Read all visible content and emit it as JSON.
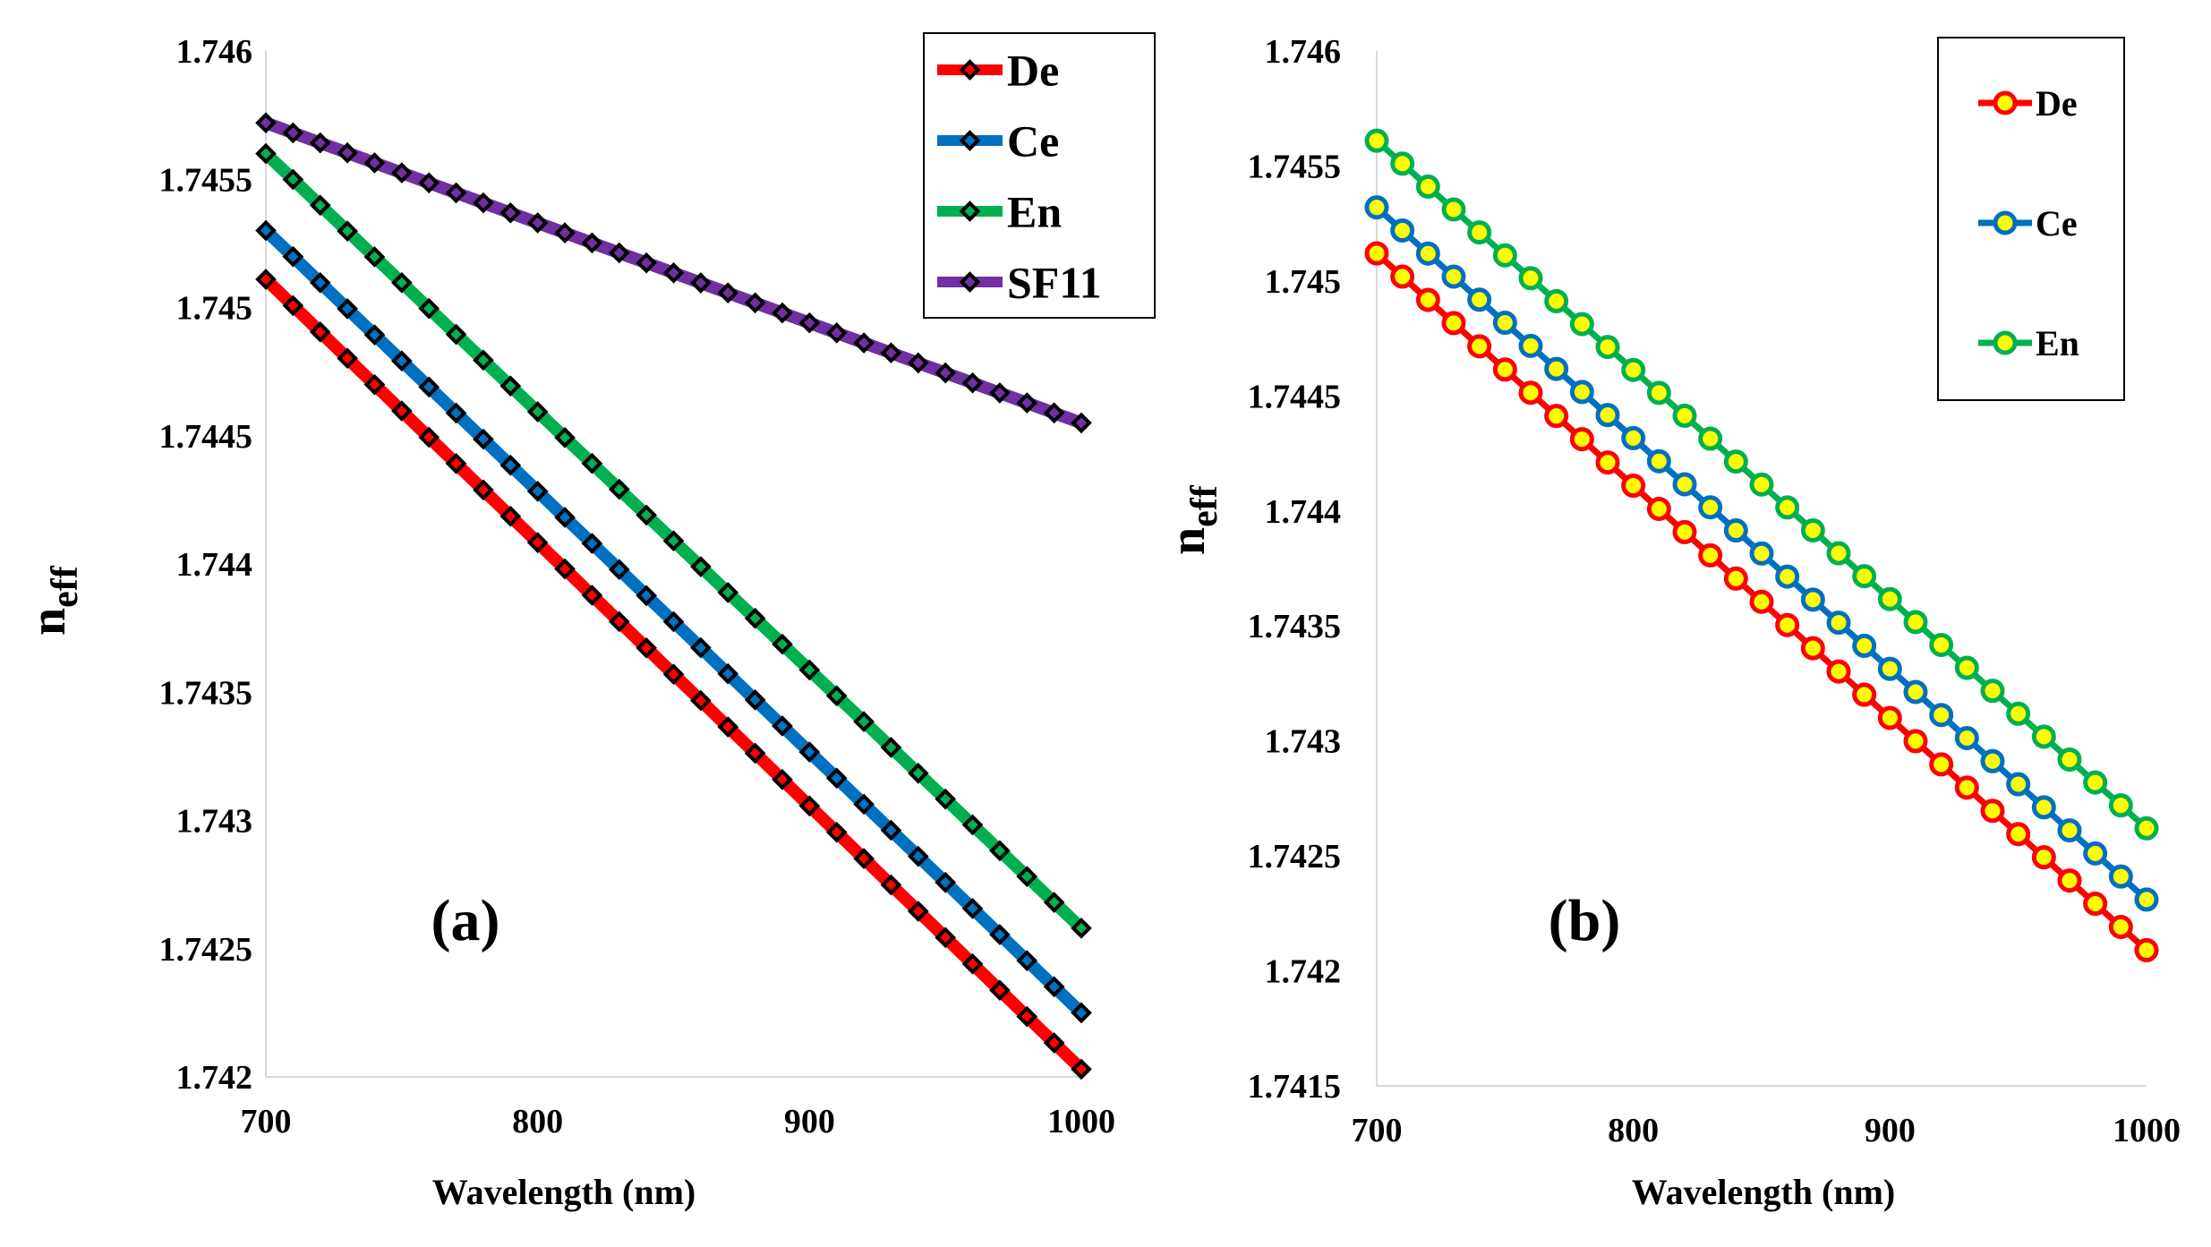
{
  "chart_data": [
    {
      "type": "line",
      "panel_label": "(a)",
      "xlabel": "Wavelength (nm)",
      "ylabel": "n",
      "ylabel_sub": "eff",
      "xlim": [
        700,
        1000
      ],
      "ylim": [
        1.742,
        1.746
      ],
      "x_ticks": [
        "700",
        "800",
        "900",
        "1000"
      ],
      "y_ticks": [
        "1.742",
        "1.7425",
        "1.743",
        "1.7435",
        "1.744",
        "1.7445",
        "1.745",
        "1.7455",
        "1.746"
      ],
      "grid": false,
      "legend_position": "top-right",
      "marker": "diamond",
      "marker_fill": "line-color",
      "marker_edge": "#000000",
      "x": [
        700,
        710,
        720,
        730,
        740,
        750,
        760,
        770,
        780,
        790,
        800,
        810,
        820,
        830,
        840,
        850,
        860,
        870,
        880,
        890,
        900,
        910,
        920,
        930,
        940,
        950,
        960,
        970,
        980,
        990,
        1000
      ],
      "series": [
        {
          "name": "De",
          "color": "#ff0000",
          "start": 1.74511,
          "end": 1.74203
        },
        {
          "name": "Ce",
          "color": "#0070c0",
          "start": 1.7453,
          "end": 1.74225
        },
        {
          "name": "En",
          "color": "#00b050",
          "start": 1.7456,
          "end": 1.74258
        },
        {
          "name": "SF11",
          "color": "#7030a0",
          "start": 1.74572,
          "end": 1.74455
        }
      ]
    },
    {
      "type": "line",
      "panel_label": "(b)",
      "xlabel": "Wavelength (nm)",
      "ylabel": "n",
      "ylabel_sub": "eff",
      "xlim": [
        700,
        1000
      ],
      "ylim": [
        1.7415,
        1.746
      ],
      "x_ticks": [
        "700",
        "800",
        "900",
        "1000"
      ],
      "y_ticks": [
        "1.7415",
        "1.742",
        "1.7425",
        "1.743",
        "1.7435",
        "1.744",
        "1.7445",
        "1.745",
        "1.7455",
        "1.746"
      ],
      "grid": false,
      "legend_position": "top-right",
      "marker": "circle",
      "marker_fill": "#ffff00",
      "marker_edge": "line-color",
      "x": [
        700,
        710,
        720,
        730,
        740,
        750,
        760,
        770,
        780,
        790,
        800,
        810,
        820,
        830,
        840,
        850,
        860,
        870,
        880,
        890,
        900,
        910,
        920,
        930,
        940,
        950,
        960,
        970,
        980,
        990,
        1000
      ],
      "series": [
        {
          "name": "De",
          "color": "#ff0000",
          "start": 1.74512,
          "end": 1.74209
        },
        {
          "name": "Ce",
          "color": "#0070c0",
          "start": 1.74532,
          "end": 1.74231
        },
        {
          "name": "En",
          "color": "#00b050",
          "start": 1.74561,
          "end": 1.74262
        }
      ]
    }
  ]
}
